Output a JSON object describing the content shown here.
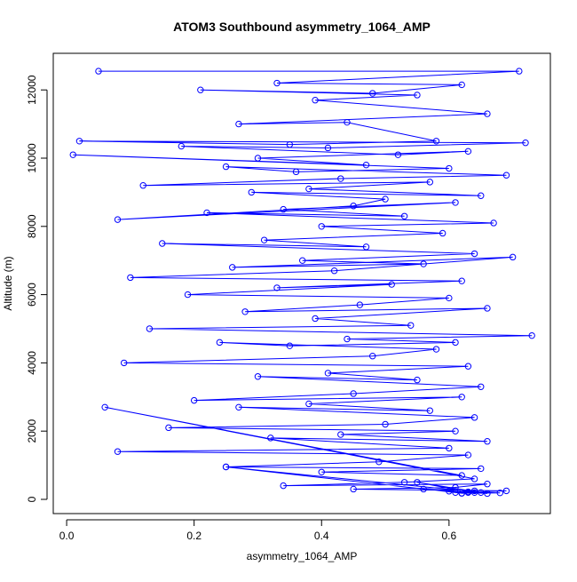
{
  "chart_data": {
    "type": "line",
    "title": "ATOM3 Southbound asymmetry_1064_AMP",
    "x_label": "asymmetry_1064_AMP",
    "y_label": "Altitude (m)",
    "color": "#0000ff",
    "x": [
      0.05,
      0.71,
      0.33,
      0.62,
      0.48,
      0.21,
      0.55,
      0.39,
      0.66,
      0.27,
      0.44,
      0.58,
      0.35,
      0.02,
      0.72,
      0.41,
      0.18,
      0.52,
      0.63,
      0.3,
      0.47,
      0.01,
      0.6,
      0.36,
      0.25,
      0.69,
      0.43,
      0.12,
      0.57,
      0.38,
      0.65,
      0.29,
      0.5,
      0.45,
      0.08,
      0.61,
      0.34,
      0.53,
      0.22,
      0.67,
      0.4,
      0.59,
      0.31,
      0.47,
      0.15,
      0.64,
      0.37,
      0.56,
      0.26,
      0.7,
      0.42,
      0.1,
      0.62,
      0.33,
      0.51,
      0.19,
      0.6,
      0.46,
      0.28,
      0.66,
      0.39,
      0.54,
      0.13,
      0.73,
      0.44,
      0.61,
      0.35,
      0.24,
      0.58,
      0.48,
      0.09,
      0.63,
      0.41,
      0.55,
      0.3,
      0.65,
      0.45,
      0.2,
      0.62,
      0.38,
      0.57,
      0.27,
      0.64,
      0.5,
      0.16,
      0.61,
      0.43,
      0.66,
      0.32,
      0.6,
      0.08,
      0.63,
      0.49,
      0.25,
      0.65,
      0.4,
      0.62,
      0.06,
      0.64,
      0.53,
      0.34,
      0.66,
      0.61,
      0.45,
      0.69,
      0.63,
      0.56,
      0.64,
      0.62,
      0.25,
      0.65,
      0.55,
      0.63,
      0.66,
      0.6,
      0.64,
      0.62,
      0.68,
      0.63,
      0.61
    ],
    "values": [
      12550,
      12550,
      12200,
      12150,
      11900,
      12000,
      11850,
      11700,
      11300,
      11000,
      11050,
      10500,
      10400,
      10500,
      10450,
      10300,
      10350,
      10100,
      10200,
      10000,
      9800,
      10100,
      9700,
      9600,
      9750,
      9500,
      9400,
      9200,
      9300,
      9100,
      8900,
      9000,
      8800,
      8600,
      8200,
      8700,
      8500,
      8300,
      8400,
      8100,
      8000,
      7800,
      7600,
      7400,
      7500,
      7200,
      7000,
      6900,
      6800,
      7100,
      6700,
      6500,
      6400,
      6200,
      6300,
      6000,
      5900,
      5700,
      5500,
      5600,
      5300,
      5100,
      5000,
      4800,
      4700,
      4600,
      4500,
      4600,
      4400,
      4200,
      4000,
      3900,
      3700,
      3500,
      3600,
      3300,
      3100,
      2900,
      3000,
      2800,
      2600,
      2700,
      2400,
      2200,
      2100,
      2000,
      1900,
      1700,
      1800,
      1500,
      1400,
      1300,
      1100,
      950,
      900,
      800,
      700,
      2700,
      600,
      500,
      400,
      450,
      350,
      300,
      250,
      200,
      300,
      250,
      180,
      950,
      200,
      500,
      220,
      170,
      240,
      200,
      180,
      190,
      210,
      200
    ],
    "xlim": [
      -0.021,
      0.759
    ],
    "ylim": [
      -417,
      13073
    ],
    "xticks": [
      {
        "value": 0,
        "label": "0.0"
      },
      0.2,
      0.4,
      0.6
    ],
    "yticks": [
      0,
      2000,
      4000,
      6000,
      8000,
      10000,
      12000
    ]
  }
}
